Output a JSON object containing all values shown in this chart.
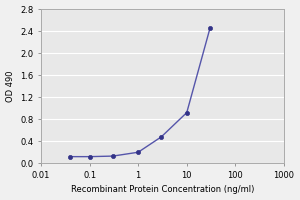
{
  "x": [
    0.04,
    0.1,
    0.3,
    1,
    3,
    10,
    30
  ],
  "y": [
    0.12,
    0.12,
    0.13,
    0.2,
    0.48,
    0.92,
    2.45
  ],
  "line_color": "#5555aa",
  "marker_color": "#333388",
  "marker_style": "o",
  "marker_size": 3,
  "xlabel": "Recombinant Protein Concentration (ng/ml)",
  "ylabel": "OD 490",
  "xlim": [
    0.01,
    1000
  ],
  "ylim": [
    0.0,
    2.8
  ],
  "yticks": [
    0.0,
    0.4,
    0.8,
    1.2,
    1.6,
    2.0,
    2.4,
    2.8
  ],
  "ytick_labels": [
    "0.0",
    "0.4",
    "0.8",
    "1.2",
    "1.6",
    "2.0",
    "2.4",
    "2.8"
  ],
  "xtick_labels": [
    "0.01",
    "0.1",
    "1",
    "10",
    "100",
    "1000"
  ],
  "xtick_positions": [
    0.01,
    0.1,
    1,
    10,
    100,
    1000
  ],
  "plot_bg_color": "#e8e8e8",
  "fig_bg_color": "#f0f0f0",
  "grid_color": "#ffffff",
  "axis_fontsize": 6,
  "tick_fontsize": 6,
  "linewidth": 1.0
}
